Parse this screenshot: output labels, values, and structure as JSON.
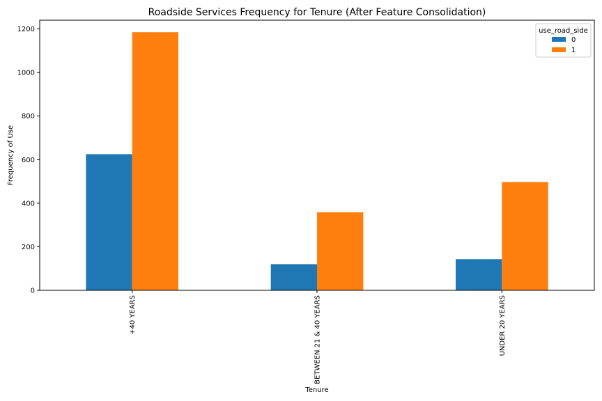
{
  "chart_data": {
    "type": "bar",
    "title": "Roadside Services Frequency for Tenure (After Feature Consolidation)",
    "xlabel": "Tenure",
    "ylabel": "Frequency of Use",
    "categories": [
      "+40 YEARS",
      "BETWEEN 21 & 40 YEARS",
      "UNDER 20 YEARS"
    ],
    "series": [
      {
        "name": "0",
        "values": [
          625,
          120,
          143
        ],
        "color": "#1f77b4"
      },
      {
        "name": "1",
        "values": [
          1185,
          358,
          497
        ],
        "color": "#ff7f0e"
      }
    ],
    "legend_title": "use_road_side",
    "legend_position": "top-right",
    "ylim": [
      0,
      1240
    ],
    "yticks": [
      0,
      200,
      400,
      600,
      800,
      1000,
      1200
    ],
    "grid": false
  }
}
